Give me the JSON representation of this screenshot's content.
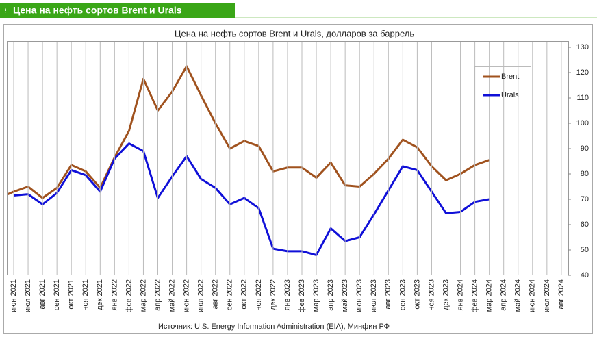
{
  "header": {
    "title": "Цена на нефть сортов Brent и Urals"
  },
  "chart_data": {
    "type": "line",
    "title": "Цена на нефть сортов Brent и Urals, долларов за баррель",
    "source": "Источник: U.S. Energy Information Administration (EIA), Минфин РФ",
    "categories": [
      null,
      "июн 2021",
      "июл 2021",
      "авг 2021",
      "сен 2021",
      "окт 2021",
      "ноя 2021",
      "дек 2021",
      "янв 2022",
      "фев 2022",
      "мар 2022",
      "апр 2022",
      "май 2022",
      "июн 2022",
      "июл 2022",
      "авг 2022",
      "сен 2022",
      "окт 2022",
      "ноя 2022",
      "дек 2022",
      "янв 2023",
      "фев 2023",
      "мар 2023",
      "апр 2023",
      "май 2023",
      "июн 2023",
      "июл 2023",
      "авг 2023",
      "сен 2023",
      "окт 2023",
      "ноя 2023",
      "дек 2023",
      "янв 2024",
      "фев 2024",
      "мар 2024",
      "апр 2024",
      "май 2024",
      "июн 2024",
      "июл 2024",
      "авг 2024"
    ],
    "series": [
      {
        "name": "Brent",
        "color": "#a0521e",
        "values": [
          70.5,
          73,
          75,
          70.5,
          74.5,
          83.5,
          81,
          74.5,
          86.5,
          97,
          117.5,
          105,
          112.5,
          122.5,
          111,
          100,
          90,
          93,
          91,
          81,
          82.5,
          82.5,
          78.5,
          84.5,
          75.5,
          75,
          80,
          86,
          93.5,
          90.5,
          83,
          77.5,
          80,
          83.5,
          85.5,
          null,
          null,
          null,
          null,
          null
        ]
      },
      {
        "name": "Urals",
        "color": "#1010d8",
        "values": [
          null,
          71.5,
          72,
          68,
          72.5,
          81.5,
          79.5,
          73,
          86,
          92,
          89,
          70.5,
          79,
          87,
          78,
          74.5,
          68,
          70.5,
          66.5,
          50.5,
          49.5,
          49.5,
          48,
          58.5,
          53.5,
          55,
          64,
          73.5,
          83,
          81.5,
          73,
          64.5,
          65,
          69,
          70,
          null,
          null,
          null,
          null,
          null
        ]
      }
    ],
    "ylim": [
      40,
      130
    ],
    "yticks": [
      40,
      50,
      60,
      70,
      80,
      90,
      100,
      110,
      120,
      130
    ],
    "grid": "x",
    "legend": "upper right"
  }
}
